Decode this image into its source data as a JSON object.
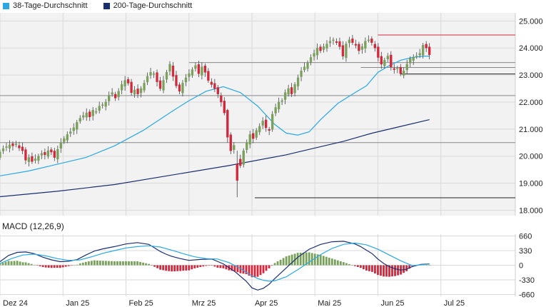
{
  "legend": {
    "items": [
      {
        "label": "38-Tage-Durchschnitt",
        "color": "#29a9e1"
      },
      {
        "label": "200-Tage-Durchschnitt",
        "color": "#1b2f6e"
      }
    ]
  },
  "colors": {
    "up": "#7aa15c",
    "down": "#d2283c",
    "ma38": "#29a9e1",
    "ma200": "#1b2f6e",
    "macd": "#1b2f6e",
    "signal": "#29a9e1",
    "grid": "#d9d9d9",
    "band": "#f2f2f2"
  },
  "chart_data": [
    {
      "type": "candlestick",
      "title": "",
      "y_ticks": [
        "25.000",
        "24.000",
        "23.000",
        "22.000",
        "21.000",
        "20.000",
        "19.000",
        "18.000"
      ],
      "y_tick_values": [
        25000,
        24000,
        23000,
        22000,
        21000,
        20000,
        19000,
        18000
      ],
      "ylim": [
        17800,
        25300
      ],
      "x_ticks": [
        "Dez 24",
        "Jan 25",
        "Feb 25",
        "Mrz 25",
        "Apr 25",
        "Mai 25",
        "Jun 25",
        "Jul 25"
      ],
      "x_tick_positions": [
        0,
        22,
        44,
        66,
        88,
        110,
        132,
        154
      ],
      "x_range": [
        0,
        180
      ],
      "horizontal_lines": [
        {
          "value": 24480,
          "color": "#d2283c",
          "from_index": 132,
          "to_index": 180
        },
        {
          "value": 23460,
          "color": "#888888",
          "from_index": 66,
          "to_index": 180
        },
        {
          "value": 23280,
          "color": "#888888",
          "from_index": 126,
          "to_index": 180
        },
        {
          "value": 23040,
          "color": "#222222",
          "from_index": 140,
          "to_index": 180
        },
        {
          "value": 22240,
          "color": "#888888",
          "from_index": 0,
          "to_index": 180
        },
        {
          "value": 20500,
          "color": "#888888",
          "from_index": 0,
          "to_index": 180
        },
        {
          "value": 18460,
          "color": "#222222",
          "from_index": 89,
          "to_index": 180
        }
      ],
      "candles": [],
      "series": [
        {
          "name": "38-Tage-Durchschnitt",
          "x": [
            0,
            10,
            20,
            30,
            40,
            50,
            60,
            66,
            72,
            78,
            84,
            90,
            96,
            100,
            104,
            108,
            112,
            118,
            124,
            128,
            132,
            136,
            140,
            144,
            148,
            150
          ],
          "values": [
            19270,
            19450,
            19700,
            19950,
            20380,
            20950,
            21650,
            22050,
            22400,
            22570,
            22350,
            21850,
            21170,
            20850,
            20780,
            20900,
            21350,
            21950,
            22350,
            22600,
            23100,
            23350,
            23550,
            23650,
            23700,
            23700
          ]
        },
        {
          "name": "200-Tage-Durchschnitt",
          "x": [
            0,
            20,
            40,
            60,
            80,
            100,
            110,
            120,
            130,
            140,
            150
          ],
          "values": [
            18500,
            18700,
            18950,
            19300,
            19650,
            20050,
            20300,
            20550,
            20850,
            21100,
            21350
          ]
        }
      ]
    },
    {
      "type": "macd",
      "title": "MACD (12,26,9)",
      "y_ticks": [
        "660",
        "330",
        "0",
        "-330",
        "-660"
      ],
      "y_tick_values": [
        660,
        330,
        0,
        -330,
        -660
      ],
      "ylim": [
        -700,
        700
      ],
      "histogram": [],
      "series": [
        {
          "name": "MACD",
          "x": [
            0,
            3,
            6,
            9,
            12,
            15,
            18,
            21,
            24,
            27,
            30,
            33,
            36,
            40,
            44,
            48,
            52,
            54,
            56,
            58,
            60,
            63,
            66,
            70,
            74,
            78,
            82,
            86,
            88,
            90,
            92,
            94,
            96,
            100,
            104,
            108,
            112,
            116,
            120,
            124,
            126,
            128,
            130,
            132,
            134,
            136,
            138,
            140,
            142,
            144,
            147,
            150
          ],
          "values": [
            80,
            220,
            290,
            300,
            260,
            180,
            120,
            80,
            90,
            130,
            230,
            320,
            370,
            420,
            480,
            510,
            470,
            390,
            310,
            250,
            200,
            150,
            110,
            130,
            140,
            30,
            -140,
            -360,
            -510,
            -560,
            -520,
            -430,
            -300,
            -60,
            180,
            360,
            470,
            530,
            540,
            480,
            420,
            340,
            260,
            140,
            40,
            -30,
            -80,
            -110,
            -90,
            -30,
            20,
            30
          ]
        },
        {
          "name": "Signal",
          "x": [
            0,
            4,
            8,
            12,
            16,
            20,
            24,
            28,
            32,
            36,
            40,
            44,
            48,
            52,
            56,
            60,
            64,
            68,
            72,
            76,
            80,
            84,
            86,
            88,
            90,
            92,
            94,
            96,
            100,
            104,
            108,
            112,
            116,
            120,
            124,
            128,
            132,
            136,
            140,
            144,
            147,
            150
          ],
          "values": [
            40,
            150,
            230,
            250,
            210,
            150,
            110,
            120,
            190,
            270,
            330,
            390,
            420,
            440,
            410,
            340,
            260,
            190,
            150,
            140,
            60,
            -70,
            -160,
            -240,
            -300,
            -340,
            -360,
            -350,
            -260,
            -100,
            70,
            240,
            380,
            470,
            500,
            460,
            360,
            230,
            100,
            -10,
            10,
            25
          ]
        }
      ]
    }
  ]
}
